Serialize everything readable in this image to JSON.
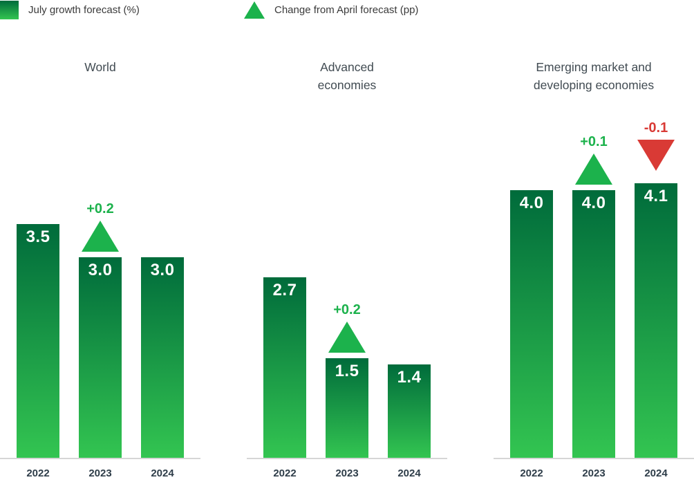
{
  "legend": {
    "bar_label": "July growth forecast (%)",
    "change_label": "Change from April forecast (pp)"
  },
  "colors": {
    "bar_gradient_top": "#006b3b",
    "bar_gradient_bottom": "#33c551",
    "positive": "#1cb24c",
    "negative": "#d93a35",
    "title": "#414b52",
    "year_label": "#2e3d49",
    "baseline": "#d6d6d6",
    "legend_text": "#3a3a3a"
  },
  "chart_data": {
    "type": "bar",
    "title": "",
    "unit": "percent",
    "categories": [
      "2022",
      "2023",
      "2024"
    ],
    "ylim": [
      0,
      4.5
    ],
    "grid": false,
    "legend_entries": [
      "July growth forecast (%)",
      "Change from April forecast (pp)"
    ],
    "groups": [
      {
        "title_lines": [
          "World"
        ],
        "bars": [
          {
            "year": "2022",
            "value": 3.5,
            "label": "3.5",
            "change": null
          },
          {
            "year": "2023",
            "value": 3.0,
            "label": "3.0",
            "change": {
              "label": "+0.2",
              "direction": "up"
            }
          },
          {
            "year": "2024",
            "value": 3.0,
            "label": "3.0",
            "change": null
          }
        ]
      },
      {
        "title_lines": [
          "Advanced",
          "economies"
        ],
        "bars": [
          {
            "year": "2022",
            "value": 2.7,
            "label": "2.7",
            "change": null
          },
          {
            "year": "2023",
            "value": 1.5,
            "label": "1.5",
            "change": {
              "label": "+0.2",
              "direction": "up"
            }
          },
          {
            "year": "2024",
            "value": 1.4,
            "label": "1.4",
            "change": null
          }
        ]
      },
      {
        "title_lines": [
          "Emerging market and",
          "developing economies"
        ],
        "bars": [
          {
            "year": "2022",
            "value": 4.0,
            "label": "4.0",
            "change": null
          },
          {
            "year": "2023",
            "value": 4.0,
            "label": "4.0",
            "change": {
              "label": "+0.1",
              "direction": "up"
            }
          },
          {
            "year": "2024",
            "value": 4.1,
            "label": "4.1",
            "change": {
              "label": "-0.1",
              "direction": "down"
            }
          }
        ]
      }
    ]
  }
}
